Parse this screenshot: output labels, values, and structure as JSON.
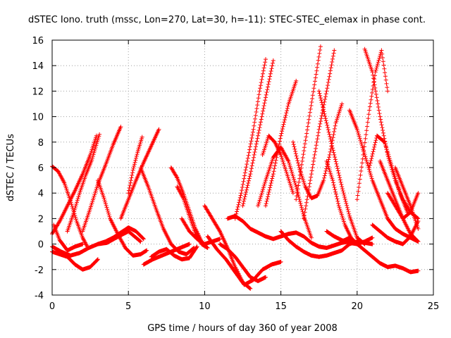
{
  "chart_data": {
    "type": "scatter",
    "title": "dSTEC Iono. truth (mssc, Lon=270, Lat=30, h=-11): STEC-STEC_elemax in phase cont.",
    "xlabel": "GPS time / hours of day 360 of year 2008",
    "ylabel": "dSTEC  / TECUs",
    "xlim": [
      0,
      25
    ],
    "ylim": [
      -4,
      16
    ],
    "xticks": [
      0,
      5,
      10,
      15,
      20,
      25
    ],
    "yticks": [
      -4,
      -2,
      0,
      2,
      4,
      6,
      8,
      10,
      12,
      14,
      16
    ],
    "grid": true,
    "marker": "+",
    "color": "#ff0000",
    "series": [
      {
        "x": [
          0,
          0.5,
          1.0,
          1.5,
          2.0,
          2.5,
          2.9
        ],
        "y": [
          0.8,
          1.8,
          3.0,
          4.2,
          5.5,
          7.0,
          8.5
        ]
      },
      {
        "x": [
          0,
          0.4,
          0.8,
          1.2,
          1.6,
          2.0,
          2.3
        ],
        "y": [
          6.1,
          5.7,
          4.8,
          3.4,
          1.8,
          0.5,
          -0.2
        ]
      },
      {
        "x": [
          0,
          0.6,
          1.2,
          1.8,
          2.4,
          3.0,
          3.6,
          4.2,
          5.0,
          5.8
        ],
        "y": [
          -0.2,
          -0.6,
          -0.9,
          -0.7,
          -0.3,
          0.0,
          0.1,
          0.5,
          1.0,
          0.2
        ]
      },
      {
        "x": [
          0,
          0.5,
          1.0,
          1.5,
          2.0,
          2.5,
          3.0
        ],
        "y": [
          -0.6,
          -0.8,
          -1.0,
          -1.6,
          -2.0,
          -1.8,
          -1.2
        ]
      },
      {
        "x": [
          0.1,
          0.5,
          1.0,
          1.5,
          2.0
        ],
        "y": [
          1.5,
          0.3,
          -0.5,
          -0.2,
          0.0
        ]
      },
      {
        "x": [
          1.0,
          1.4,
          1.8,
          2.2,
          2.6,
          3.1
        ],
        "y": [
          1.0,
          2.4,
          4.0,
          5.4,
          6.6,
          8.6
        ]
      },
      {
        "x": [
          2.0,
          2.5,
          3.0,
          3.5,
          4.0,
          4.5
        ],
        "y": [
          1.0,
          2.8,
          4.7,
          6.2,
          7.8,
          9.2
        ]
      },
      {
        "x": [
          3.0,
          3.4,
          3.8,
          4.3,
          4.8,
          5.3,
          5.8,
          6.2
        ],
        "y": [
          5.0,
          3.6,
          2.0,
          0.8,
          -0.3,
          -0.9,
          -0.8,
          -0.5
        ]
      },
      {
        "x": [
          3.0,
          3.5,
          4.0,
          4.5,
          5.0,
          5.5,
          6.0
        ],
        "y": [
          0.0,
          0.2,
          0.5,
          0.9,
          1.3,
          1.0,
          0.4
        ]
      },
      {
        "x": [
          4.5,
          5.0,
          5.5,
          6.0,
          6.5,
          7.0
        ],
        "y": [
          2.0,
          3.5,
          5.0,
          6.4,
          7.7,
          9.0
        ]
      },
      {
        "x": [
          5.0,
          5.3,
          5.6,
          5.9
        ],
        "y": [
          4.0,
          5.8,
          7.2,
          8.4
        ]
      },
      {
        "x": [
          5.8,
          6.3,
          6.8,
          7.3,
          7.8,
          8.3,
          8.8,
          9.3
        ],
        "y": [
          6.0,
          4.5,
          2.8,
          1.2,
          0.0,
          -0.6,
          -0.8,
          -0.3
        ]
      },
      {
        "x": [
          6.0,
          6.6,
          7.2,
          7.8,
          8.4,
          9.0
        ],
        "y": [
          -1.6,
          -1.2,
          -0.9,
          -0.6,
          -0.3,
          0.0
        ]
      },
      {
        "x": [
          6.5,
          7.0,
          7.5,
          8.0,
          8.5,
          9.0,
          9.5
        ],
        "y": [
          -1.0,
          -0.6,
          -0.4,
          -0.9,
          -1.2,
          -1.1,
          -0.2
        ]
      },
      {
        "x": [
          7.8,
          8.2,
          8.6,
          9.0,
          9.4,
          9.8
        ],
        "y": [
          6.0,
          5.2,
          4.0,
          2.6,
          1.2,
          0.2
        ]
      },
      {
        "x": [
          8.2,
          8.6,
          9.0,
          9.4,
          9.8,
          10.2
        ],
        "y": [
          4.5,
          3.6,
          2.2,
          0.8,
          0.0,
          -0.3
        ]
      },
      {
        "x": [
          8.5,
          9.0,
          9.5,
          10.0,
          10.5,
          11.0
        ],
        "y": [
          2.0,
          1.0,
          0.4,
          0.0,
          0.2,
          0.4
        ]
      },
      {
        "x": [
          10.0,
          10.5,
          11.0,
          11.5,
          12.0,
          12.5,
          13.0
        ],
        "y": [
          3.0,
          2.0,
          1.0,
          -0.3,
          -1.8,
          -3.0,
          -3.5
        ]
      },
      {
        "x": [
          10.2,
          10.8,
          11.4,
          12.0,
          12.6,
          13.2,
          13.8,
          14.4,
          15.0
        ],
        "y": [
          0.6,
          -0.4,
          -1.2,
          -2.2,
          -3.2,
          -2.8,
          -2.0,
          -1.6,
          -1.4
        ]
      },
      {
        "x": [
          11.0,
          11.5,
          12.0,
          12.5,
          13.0,
          13.5,
          14.0
        ],
        "y": [
          0.0,
          -0.4,
          -1.0,
          -1.8,
          -2.6,
          -2.9,
          -2.6
        ]
      },
      {
        "x": [
          11.5,
          12.0,
          12.5,
          13.0,
          13.5,
          14.0,
          14.5,
          15.0,
          15.5,
          16.0,
          16.5,
          17.0,
          17.5,
          18.0,
          18.5,
          19.0,
          19.5,
          20.0
        ],
        "y": [
          2.0,
          2.2,
          1.8,
          1.2,
          0.9,
          0.6,
          0.4,
          0.6,
          0.8,
          0.9,
          0.6,
          0.1,
          -0.2,
          -0.3,
          -0.1,
          0.1,
          0.2,
          0.1
        ]
      },
      {
        "x": [
          12.0,
          12.4,
          12.8,
          13.2,
          13.6,
          14.0
        ],
        "y": [
          2.0,
          4.0,
          6.5,
          9.0,
          12.0,
          14.5
        ]
      },
      {
        "x": [
          12.5,
          13.0,
          13.5,
          14.0,
          14.5
        ],
        "y": [
          3.0,
          5.5,
          8.5,
          11.5,
          14.4
        ]
      },
      {
        "x": [
          13.5,
          14.0,
          14.5,
          15.0,
          15.5,
          16.0,
          16.5,
          17.0
        ],
        "y": [
          3.0,
          5.0,
          6.8,
          7.6,
          6.5,
          4.5,
          2.2,
          0.5
        ]
      },
      {
        "x": [
          13.8,
          14.2,
          14.6,
          15.0,
          15.4,
          15.8
        ],
        "y": [
          7.0,
          8.5,
          8.0,
          7.0,
          5.5,
          4.0
        ]
      },
      {
        "x": [
          14.0,
          14.5,
          15.0,
          15.5,
          16.0
        ],
        "y": [
          3.0,
          5.5,
          8.5,
          11.0,
          12.8
        ]
      },
      {
        "x": [
          15.0,
          15.5,
          16.0,
          16.5,
          17.0,
          17.5,
          18.0,
          18.5,
          19.0,
          19.5,
          20.0,
          20.5,
          21.0
        ],
        "y": [
          1.0,
          0.3,
          -0.2,
          -0.6,
          -0.9,
          -1.0,
          -0.9,
          -0.7,
          -0.5,
          0.0,
          0.2,
          0.1,
          0.0
        ]
      },
      {
        "x": [
          15.8,
          16.2,
          16.6,
          17.0,
          17.4,
          17.8,
          18.2,
          18.6,
          19.0
        ],
        "y": [
          8.0,
          6.0,
          4.5,
          3.6,
          3.8,
          5.0,
          7.0,
          9.5,
          11.0
        ]
      },
      {
        "x": [
          16.0,
          16.4,
          16.8,
          17.2,
          17.6
        ],
        "y": [
          3.5,
          6.5,
          9.5,
          12.5,
          15.5
        ]
      },
      {
        "x": [
          16.5,
          17.0,
          17.5,
          18.0,
          18.5
        ],
        "y": [
          2.0,
          5.5,
          9.0,
          12.0,
          15.2
        ]
      },
      {
        "x": [
          17.5,
          18.0,
          18.5,
          19.0,
          19.5,
          20.0,
          20.5
        ],
        "y": [
          12.0,
          9.5,
          7.0,
          4.5,
          2.2,
          0.5,
          0.0
        ]
      },
      {
        "x": [
          18.0,
          18.4,
          18.8,
          19.2,
          19.6,
          20.0
        ],
        "y": [
          6.5,
          5.0,
          3.0,
          1.5,
          0.5,
          0.0
        ]
      },
      {
        "x": [
          18.0,
          18.5,
          19.0,
          19.5,
          20.0,
          20.5,
          21.0
        ],
        "y": [
          1.0,
          0.6,
          0.3,
          0.1,
          0.0,
          0.2,
          0.5
        ]
      },
      {
        "x": [
          19.0,
          19.5,
          20.0,
          20.5,
          21.0,
          21.5,
          22.0,
          22.5,
          23.0,
          23.5,
          24.0
        ],
        "y": [
          0.2,
          0.5,
          0.0,
          -0.5,
          -1.0,
          -1.5,
          -1.8,
          -1.7,
          -1.9,
          -2.2,
          -2.1
        ]
      },
      {
        "x": [
          19.5,
          20.0,
          20.5,
          21.0,
          21.5,
          22.0,
          22.5,
          23.0,
          23.5,
          24.0
        ],
        "y": [
          10.5,
          9.0,
          7.0,
          5.0,
          3.5,
          2.0,
          1.2,
          0.8,
          0.5,
          0.2
        ]
      },
      {
        "x": [
          20.0,
          20.4,
          20.8,
          21.2,
          21.6,
          22.0
        ],
        "y": [
          3.5,
          7.0,
          10.5,
          13.5,
          15.2,
          12.0
        ]
      },
      {
        "x": [
          20.5,
          21.0,
          21.5,
          22.0,
          22.5,
          23.0,
          23.5,
          24.0
        ],
        "y": [
          15.3,
          13.5,
          10.0,
          7.0,
          5.0,
          3.5,
          2.5,
          2.0
        ]
      },
      {
        "x": [
          20.8,
          21.3,
          21.8,
          22.3,
          22.8,
          23.3
        ],
        "y": [
          6.0,
          8.5,
          8.0,
          6.0,
          4.0,
          2.5
        ]
      },
      {
        "x": [
          21.0,
          21.5,
          22.0,
          22.5,
          23.0,
          23.5,
          24.0
        ],
        "y": [
          1.5,
          1.0,
          0.5,
          0.2,
          0.0,
          0.6,
          1.8
        ]
      },
      {
        "x": [
          21.5,
          22.0,
          22.5,
          23.0,
          23.5,
          24.0
        ],
        "y": [
          6.5,
          5.0,
          3.5,
          2.0,
          0.8,
          0.2
        ]
      },
      {
        "x": [
          22.0,
          22.5,
          23.0,
          23.5,
          24.0
        ],
        "y": [
          4.0,
          3.0,
          2.0,
          2.5,
          4.0
        ]
      },
      {
        "x": [
          22.5,
          23.0,
          23.5,
          24.0
        ],
        "y": [
          6.0,
          4.5,
          3.0,
          1.2
        ]
      }
    ]
  }
}
